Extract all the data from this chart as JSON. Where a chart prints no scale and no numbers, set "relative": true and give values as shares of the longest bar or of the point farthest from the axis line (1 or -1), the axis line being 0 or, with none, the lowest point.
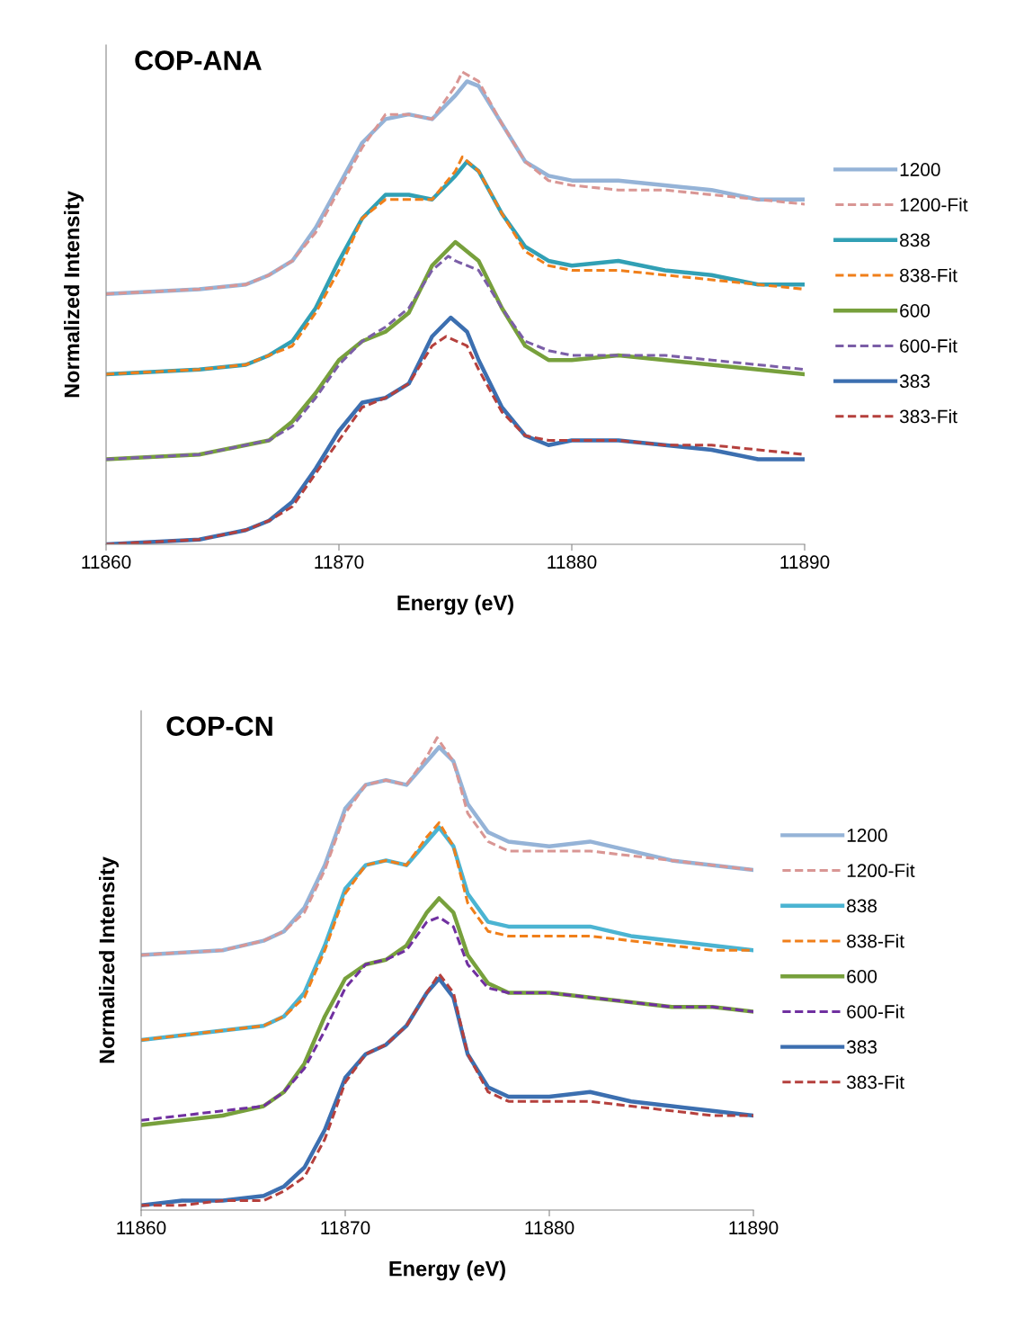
{
  "chart_data": [
    {
      "type": "line",
      "title": "COP-ANA",
      "xlabel": "Energy (eV)",
      "ylabel": "Normalized Intensity",
      "relative": true,
      "xlim": [
        11860,
        11890
      ],
      "xticks": [
        11860,
        11870,
        11880,
        11890
      ],
      "grid": false,
      "legend": "right",
      "marker": "none",
      "tick_labels": "x",
      "series": [
        {
          "name": "1200",
          "color": "#95b3d7",
          "line_style": "solid",
          "x": [
            11860,
            11864,
            11866,
            11867,
            11868,
            11869,
            11870,
            11871,
            11872,
            11873,
            11874,
            11875,
            11875.5,
            11876,
            11877,
            11878,
            11879,
            11880,
            11882,
            11884,
            11886,
            11888,
            11890
          ],
          "values": [
            0.53,
            0.54,
            0.55,
            0.57,
            0.6,
            0.67,
            0.76,
            0.85,
            0.9,
            0.91,
            0.9,
            0.95,
            0.98,
            0.97,
            0.89,
            0.81,
            0.78,
            0.77,
            0.77,
            0.76,
            0.75,
            0.73,
            0.73
          ]
        },
        {
          "name": "1200-Fit",
          "color": "#d99694",
          "line_style": "dashed",
          "x": [
            11860,
            11864,
            11866,
            11867,
            11868,
            11869,
            11870,
            11871,
            11872,
            11873,
            11874,
            11875,
            11875.3,
            11876,
            11877,
            11878,
            11879,
            11880,
            11882,
            11884,
            11886,
            11888,
            11890
          ],
          "values": [
            0.53,
            0.54,
            0.55,
            0.57,
            0.6,
            0.66,
            0.75,
            0.84,
            0.91,
            0.91,
            0.9,
            0.97,
            1.0,
            0.98,
            0.89,
            0.81,
            0.77,
            0.76,
            0.75,
            0.75,
            0.74,
            0.73,
            0.72
          ]
        },
        {
          "name": "838",
          "color": "#31a0b5",
          "line_style": "solid",
          "x": [
            11860,
            11864,
            11866,
            11867,
            11868,
            11869,
            11870,
            11871,
            11872,
            11873,
            11874,
            11875,
            11875.5,
            11876,
            11877,
            11878,
            11879,
            11880,
            11882,
            11884,
            11886,
            11888,
            11890
          ],
          "values": [
            0.36,
            0.37,
            0.38,
            0.4,
            0.43,
            0.5,
            0.6,
            0.69,
            0.74,
            0.74,
            0.73,
            0.78,
            0.81,
            0.79,
            0.7,
            0.63,
            0.6,
            0.59,
            0.6,
            0.58,
            0.57,
            0.55,
            0.55
          ]
        },
        {
          "name": "838-Fit",
          "color": "#f07f1a",
          "line_style": "dashed",
          "x": [
            11860,
            11864,
            11866,
            11867,
            11868,
            11869,
            11870,
            11871,
            11872,
            11873,
            11874,
            11875,
            11875.3,
            11876,
            11877,
            11878,
            11879,
            11880,
            11882,
            11884,
            11886,
            11888,
            11890
          ],
          "values": [
            0.36,
            0.37,
            0.38,
            0.4,
            0.42,
            0.49,
            0.58,
            0.69,
            0.73,
            0.73,
            0.73,
            0.79,
            0.82,
            0.79,
            0.7,
            0.62,
            0.59,
            0.58,
            0.58,
            0.57,
            0.56,
            0.55,
            0.54
          ]
        },
        {
          "name": "600",
          "color": "#77a03c",
          "line_style": "solid",
          "x": [
            11860,
            11864,
            11866,
            11867,
            11868,
            11869,
            11870,
            11871,
            11872,
            11873,
            11874,
            11875,
            11876,
            11877,
            11878,
            11879,
            11880,
            11882,
            11884,
            11886,
            11888,
            11890
          ],
          "values": [
            0.18,
            0.19,
            0.21,
            0.22,
            0.26,
            0.32,
            0.39,
            0.43,
            0.45,
            0.49,
            0.59,
            0.64,
            0.6,
            0.5,
            0.42,
            0.39,
            0.39,
            0.4,
            0.39,
            0.38,
            0.37,
            0.36
          ]
        },
        {
          "name": "600-Fit",
          "color": "#7b5ea7",
          "line_style": "dashed",
          "x": [
            11860,
            11864,
            11866,
            11867,
            11868,
            11869,
            11870,
            11871,
            11872,
            11873,
            11874,
            11874.7,
            11875,
            11876,
            11877,
            11878,
            11879,
            11880,
            11882,
            11884,
            11886,
            11888,
            11890
          ],
          "values": [
            0.18,
            0.19,
            0.21,
            0.22,
            0.25,
            0.31,
            0.38,
            0.43,
            0.46,
            0.5,
            0.58,
            0.61,
            0.6,
            0.58,
            0.5,
            0.43,
            0.41,
            0.4,
            0.4,
            0.4,
            0.39,
            0.38,
            0.37
          ]
        },
        {
          "name": "383",
          "color": "#3c6fb0",
          "line_style": "solid",
          "x": [
            11860,
            11864,
            11866,
            11867,
            11868,
            11869,
            11870,
            11871,
            11872,
            11873,
            11874,
            11874.8,
            11875.5,
            11876,
            11877,
            11878,
            11879,
            11880,
            11882,
            11884,
            11886,
            11888,
            11890
          ],
          "values": [
            0.0,
            0.01,
            0.03,
            0.05,
            0.09,
            0.16,
            0.24,
            0.3,
            0.31,
            0.34,
            0.44,
            0.48,
            0.45,
            0.39,
            0.29,
            0.23,
            0.21,
            0.22,
            0.22,
            0.21,
            0.2,
            0.18,
            0.18
          ]
        },
        {
          "name": "383-Fit",
          "color": "#b5403d",
          "line_style": "dashed",
          "x": [
            11860,
            11864,
            11866,
            11867,
            11868,
            11869,
            11870,
            11871,
            11872,
            11873,
            11874,
            11874.6,
            11875.5,
            11876,
            11877,
            11878,
            11879,
            11880,
            11882,
            11884,
            11886,
            11888,
            11890
          ],
          "values": [
            0.0,
            0.01,
            0.03,
            0.05,
            0.08,
            0.15,
            0.22,
            0.29,
            0.31,
            0.34,
            0.42,
            0.44,
            0.42,
            0.37,
            0.28,
            0.23,
            0.22,
            0.22,
            0.22,
            0.21,
            0.21,
            0.2,
            0.19
          ]
        }
      ]
    },
    {
      "type": "line",
      "title": "COP-CN",
      "xlabel": "Energy (eV)",
      "ylabel": "Normalized Intensity",
      "relative": true,
      "xlim": [
        11860,
        11890
      ],
      "xticks": [
        11860,
        11870,
        11880,
        11890
      ],
      "grid": false,
      "legend": "right",
      "marker": "none",
      "tick_labels": "x",
      "series": [
        {
          "name": "1200",
          "color": "#95b3d7",
          "line_style": "solid",
          "x": [
            11860,
            11864,
            11866,
            11867,
            11868,
            11869,
            11870,
            11871,
            11872,
            11873,
            11874,
            11874.6,
            11875.3,
            11876,
            11877,
            11878,
            11880,
            11882,
            11884,
            11886,
            11888,
            11890
          ],
          "values": [
            0.54,
            0.55,
            0.57,
            0.59,
            0.64,
            0.73,
            0.85,
            0.9,
            0.91,
            0.9,
            0.95,
            0.98,
            0.95,
            0.86,
            0.8,
            0.78,
            0.77,
            0.78,
            0.76,
            0.74,
            0.73,
            0.72
          ]
        },
        {
          "name": "1200-Fit",
          "color": "#d99694",
          "line_style": "dashed",
          "x": [
            11860,
            11864,
            11866,
            11867,
            11868,
            11869,
            11870,
            11871,
            11872,
            11873,
            11874,
            11874.5,
            11875.3,
            11876,
            11877,
            11878,
            11880,
            11882,
            11884,
            11886,
            11888,
            11890
          ],
          "values": [
            0.54,
            0.55,
            0.57,
            0.59,
            0.63,
            0.72,
            0.84,
            0.9,
            0.91,
            0.9,
            0.96,
            1.0,
            0.95,
            0.84,
            0.78,
            0.76,
            0.76,
            0.76,
            0.75,
            0.74,
            0.73,
            0.72
          ]
        },
        {
          "name": "838",
          "color": "#4bb4d2",
          "line_style": "solid",
          "x": [
            11860,
            11864,
            11866,
            11867,
            11868,
            11869,
            11870,
            11871,
            11872,
            11873,
            11874,
            11874.6,
            11875.3,
            11876,
            11877,
            11878,
            11880,
            11882,
            11884,
            11886,
            11888,
            11890
          ],
          "values": [
            0.36,
            0.38,
            0.39,
            0.41,
            0.46,
            0.56,
            0.68,
            0.73,
            0.74,
            0.73,
            0.78,
            0.81,
            0.77,
            0.67,
            0.61,
            0.6,
            0.6,
            0.6,
            0.58,
            0.57,
            0.56,
            0.55
          ]
        },
        {
          "name": "838-Fit",
          "color": "#f07f1a",
          "line_style": "dashed",
          "x": [
            11860,
            11864,
            11866,
            11867,
            11868,
            11869,
            11870,
            11871,
            11872,
            11873,
            11874,
            11874.6,
            11875.3,
            11876,
            11877,
            11878,
            11880,
            11882,
            11884,
            11886,
            11888,
            11890
          ],
          "values": [
            0.36,
            0.38,
            0.39,
            0.41,
            0.45,
            0.55,
            0.67,
            0.73,
            0.74,
            0.73,
            0.79,
            0.82,
            0.77,
            0.65,
            0.59,
            0.58,
            0.58,
            0.58,
            0.57,
            0.56,
            0.55,
            0.55
          ]
        },
        {
          "name": "600",
          "color": "#77a03c",
          "line_style": "solid",
          "x": [
            11860,
            11864,
            11866,
            11867,
            11868,
            11869,
            11870,
            11871,
            11872,
            11873,
            11874,
            11874.6,
            11875.3,
            11876,
            11877,
            11878,
            11880,
            11882,
            11884,
            11886,
            11888,
            11890
          ],
          "values": [
            0.18,
            0.2,
            0.22,
            0.25,
            0.31,
            0.41,
            0.49,
            0.52,
            0.53,
            0.56,
            0.63,
            0.66,
            0.63,
            0.54,
            0.48,
            0.46,
            0.46,
            0.45,
            0.44,
            0.43,
            0.43,
            0.42
          ]
        },
        {
          "name": "600-Fit",
          "color": "#7030a0",
          "line_style": "dashed",
          "x": [
            11860,
            11864,
            11866,
            11867,
            11868,
            11869,
            11870,
            11871,
            11872,
            11873,
            11874,
            11874.6,
            11875.3,
            11876,
            11877,
            11878,
            11880,
            11882,
            11884,
            11886,
            11888,
            11890
          ],
          "values": [
            0.19,
            0.21,
            0.22,
            0.25,
            0.3,
            0.38,
            0.47,
            0.52,
            0.53,
            0.55,
            0.61,
            0.62,
            0.6,
            0.52,
            0.47,
            0.46,
            0.46,
            0.45,
            0.44,
            0.43,
            0.43,
            0.42
          ]
        },
        {
          "name": "383",
          "color": "#3c6fb0",
          "line_style": "solid",
          "x": [
            11860,
            11862,
            11864,
            11866,
            11867,
            11868,
            11869,
            11870,
            11871,
            11872,
            11873,
            11874,
            11874.6,
            11875.3,
            11876,
            11877,
            11878,
            11880,
            11882,
            11884,
            11886,
            11888,
            11890
          ],
          "values": [
            0.01,
            0.02,
            0.02,
            0.03,
            0.05,
            0.09,
            0.17,
            0.28,
            0.33,
            0.35,
            0.39,
            0.46,
            0.49,
            0.45,
            0.33,
            0.26,
            0.24,
            0.24,
            0.25,
            0.23,
            0.22,
            0.21,
            0.2
          ]
        },
        {
          "name": "383-Fit",
          "color": "#b5403d",
          "line_style": "dashed",
          "x": [
            11860,
            11862,
            11864,
            11866,
            11867,
            11868,
            11869,
            11870,
            11871,
            11872,
            11873,
            11874,
            11874.6,
            11875.3,
            11876,
            11877,
            11878,
            11880,
            11882,
            11884,
            11886,
            11888,
            11890
          ],
          "values": [
            0.01,
            0.01,
            0.02,
            0.02,
            0.04,
            0.07,
            0.15,
            0.27,
            0.33,
            0.35,
            0.39,
            0.46,
            0.5,
            0.46,
            0.33,
            0.25,
            0.23,
            0.23,
            0.23,
            0.22,
            0.21,
            0.2,
            0.2
          ]
        }
      ]
    }
  ]
}
